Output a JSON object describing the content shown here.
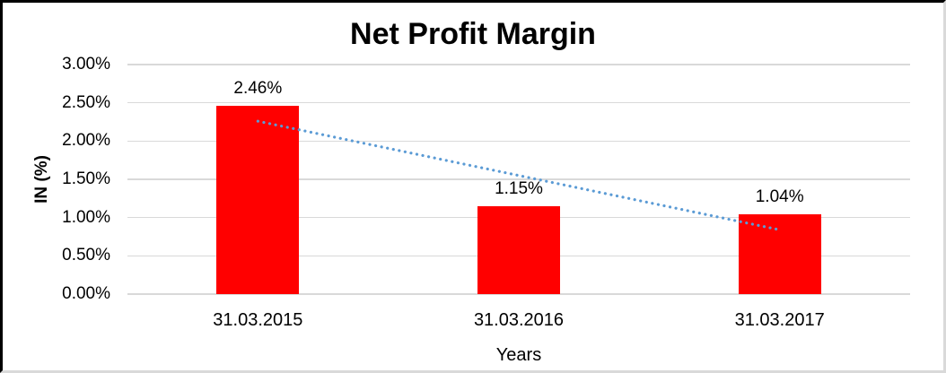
{
  "chart_data": {
    "type": "bar",
    "title": "Net Profit Margin",
    "xlabel": "Years",
    "ylabel": "IN (%)",
    "categories": [
      "31.03.2015",
      "31.03.2016",
      "31.03.2017"
    ],
    "values": [
      2.46,
      1.15,
      1.04
    ],
    "data_labels": [
      "2.46%",
      "1.15%",
      "1.04%"
    ],
    "ylim": [
      0,
      3
    ],
    "ytick_step": 0.5,
    "yticks": [
      "0.00%",
      "0.50%",
      "1.00%",
      "1.50%",
      "2.00%",
      "2.50%",
      "3.00%"
    ],
    "grid": true,
    "legend": "none",
    "bar_color": "#ff0000",
    "gridline_color": "#d9d9d9",
    "text_color": "#000000",
    "trendline": {
      "type": "linear",
      "style": "dotted",
      "color": "#5b9bd5",
      "start_value": 2.26,
      "end_value": 0.84
    }
  }
}
